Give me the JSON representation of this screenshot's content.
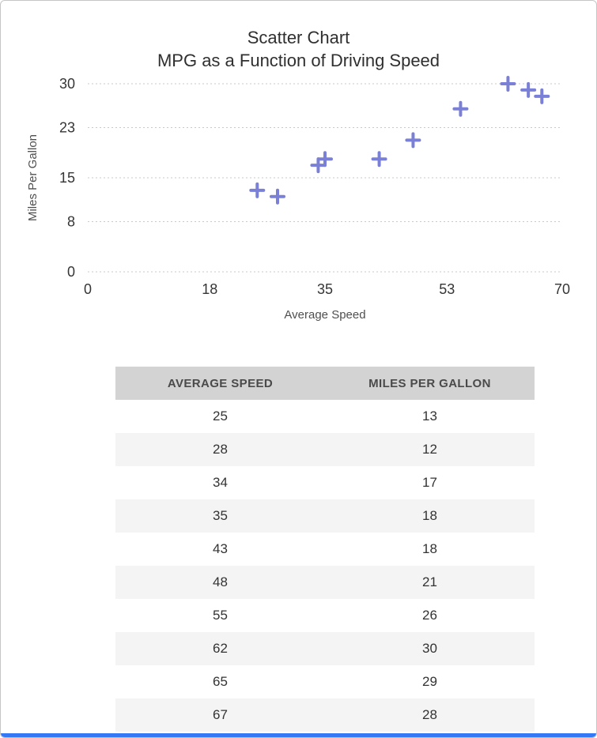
{
  "chart_data": {
    "type": "scatter",
    "title": "Scatter Chart — MPG as a Function of Driving Speed",
    "title_lines": [
      "Scatter Chart",
      "MPG as a Function of Driving Speed"
    ],
    "xlabel": "Average Speed",
    "ylabel": "Miles Per Gallon",
    "x": [
      25,
      28,
      34,
      35,
      43,
      48,
      55,
      62,
      65,
      67
    ],
    "y": [
      13,
      12,
      17,
      18,
      18,
      21,
      26,
      30,
      29,
      28
    ],
    "xlim": [
      0,
      70
    ],
    "ylim": [
      0,
      30
    ],
    "x_ticks": [
      0,
      18,
      35,
      53,
      70
    ],
    "y_ticks": [
      0,
      8,
      15,
      23,
      30
    ],
    "grid": "horizontal-dotted",
    "legend": "none",
    "marker": "plus",
    "marker_color": "#7a80d6"
  },
  "table": {
    "headers": [
      "AVERAGE SPEED",
      "MILES PER GALLON"
    ],
    "rows": [
      [
        "25",
        "13"
      ],
      [
        "28",
        "12"
      ],
      [
        "34",
        "17"
      ],
      [
        "35",
        "18"
      ],
      [
        "43",
        "18"
      ],
      [
        "48",
        "21"
      ],
      [
        "55",
        "26"
      ],
      [
        "62",
        "30"
      ],
      [
        "65",
        "29"
      ],
      [
        "67",
        "28"
      ]
    ]
  },
  "page": {
    "bottom_bar_color": "#3478f6"
  }
}
